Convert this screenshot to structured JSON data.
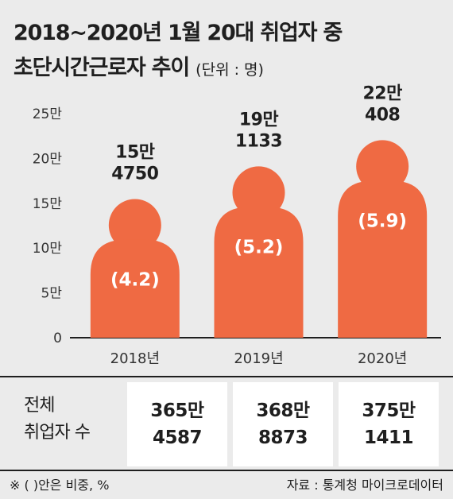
{
  "title": {
    "line1": "2018~2020년 1월 20대 취업자 중",
    "line2": "초단시간근로자 추이",
    "unit": "(단위 : 명)"
  },
  "chart_data": {
    "type": "bar",
    "categories": [
      "2018년",
      "2019년",
      "2020년"
    ],
    "values": [
      154750,
      191133,
      220408
    ],
    "value_labels": [
      [
        "15만",
        "4750"
      ],
      [
        "19만",
        "1133"
      ],
      [
        "22만",
        "408"
      ]
    ],
    "share_labels": [
      "(4.2)",
      "(5.2)",
      "(5.9)"
    ],
    "yticks": [
      0,
      50000,
      100000,
      150000,
      200000,
      250000
    ],
    "ytick_labels": [
      "0",
      "5만",
      "10만",
      "15만",
      "20만",
      "25만"
    ],
    "ylim": [
      0,
      250000
    ],
    "xlabel": "",
    "ylabel": "",
    "bar_color": "#ef6a43",
    "grid": false
  },
  "table": {
    "row_label": [
      "전체",
      "취업자 수"
    ],
    "cells": [
      [
        "365만",
        "4587"
      ],
      [
        "368만",
        "8873"
      ],
      [
        "375만",
        "1411"
      ]
    ]
  },
  "footer": {
    "note": "※ (  )안은 비중, %",
    "source": "자료 : 통계청 마이크로데이터"
  }
}
